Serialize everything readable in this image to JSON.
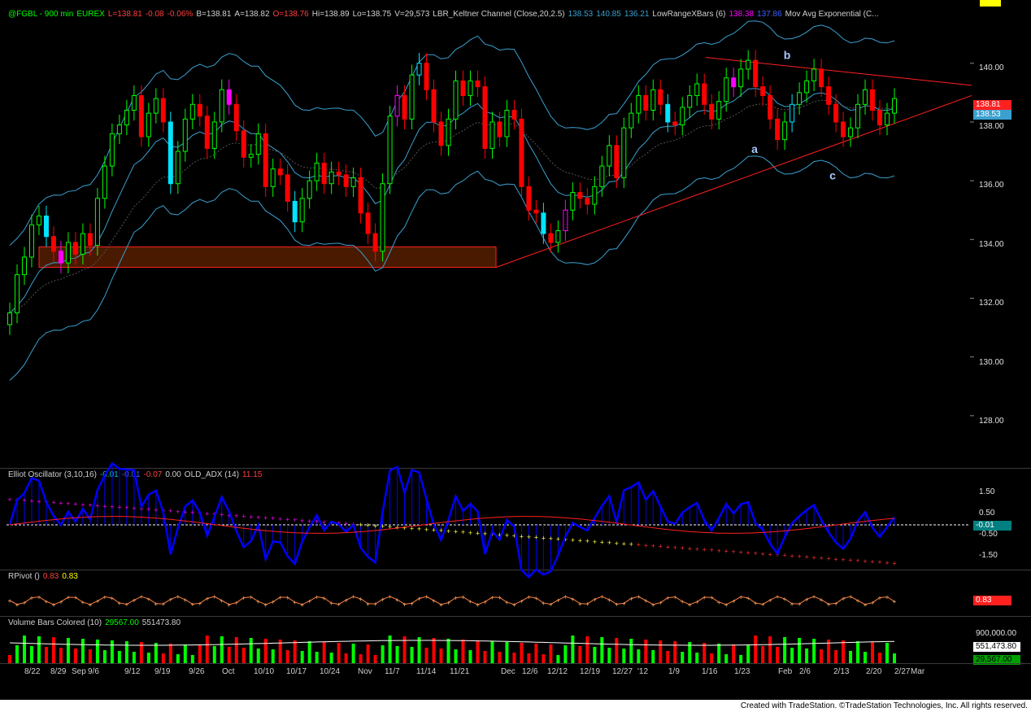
{
  "header": {
    "symbol": "@FGBL - 900 min",
    "exchange": "EUREX",
    "last": "L=138.81",
    "change": "-0.08",
    "change_pct": "-0.06%",
    "bid": "B=138.81",
    "ask": "A=138.82",
    "open": "O=138.76",
    "high": "Hi=138.89",
    "low": "Lo=138.75",
    "volume": "V=29,573",
    "keltner_name": "LBR_Keltner Channel (Close,20,2.5)",
    "keltner_values": [
      "138.53",
      "140.85",
      "136.21"
    ],
    "lrx_name": "LowRangeXBars (6)",
    "lrx_values": [
      "138.38",
      "137.86"
    ],
    "ma_name": "Mov Avg Exponential (C..."
  },
  "colors": {
    "up": "#00ff00",
    "down": "#ff0000",
    "cyan_bar": "#00e5ff",
    "magenta_bar": "#ff00ff",
    "pink_bar": "#ff80ff",
    "keltner": "#3aa0d0",
    "trendline": "#ff2020",
    "box_fill": "#4a1a00",
    "oscillator": "#0000ff",
    "adx": "#ff2020",
    "pivot": "#ff8040"
  },
  "osc_header": {
    "name": "Elliot Oscillator (3,10,16)",
    "v1": "-0.01",
    "v2": "-0.01",
    "v3": "-0.07",
    "v4": "0.00",
    "adx_name": "OLD_ADX (14)",
    "adx_value": "11.15"
  },
  "pivot_header": {
    "name": "RPivot ()",
    "v1": "0.83",
    "v2": "0.83"
  },
  "volume_header": {
    "name": "Volume Bars Colored (10)",
    "v1": "29567.00",
    "v2": "551473.80"
  },
  "price_tags": {
    "last": "138.81",
    "keltner_mid": "138.53"
  },
  "osc_tag": "-0.01",
  "pivot_tag": "0.83",
  "volume_tags": {
    "avg": "551,473.80",
    "vol": "29,567.00"
  },
  "wave_labels": [
    "a",
    "b",
    "c"
  ],
  "footer": "Created with TradeStation. ©TradeStation Technologies, Inc. All rights reserved.",
  "chart_data": {
    "type": "candlestick",
    "price_axis": {
      "ticks": [
        "140.00",
        "138.00",
        "136.00",
        "134.00",
        "132.00",
        "130.00",
        "128.00"
      ],
      "ylim": [
        126.5,
        141.6
      ]
    },
    "osc_axis": {
      "ticks": [
        "1.50",
        "0.50",
        "-0.50",
        "-1.50"
      ]
    },
    "volume_axis": {
      "ticks": [
        "900,000.00"
      ]
    },
    "dates": [
      "8/22",
      "8/29",
      "Sep",
      "9/6",
      "9/12",
      "9/19",
      "9/26",
      "Oct",
      "10/10",
      "10/17",
      "10/24",
      "Nov",
      "11/7",
      "11/14",
      "11/21",
      "Dec",
      "12/6",
      "12/12",
      "12/19",
      "12/27",
      "'12",
      "1/9",
      "1/16",
      "1/23",
      "Feb",
      "2/6",
      "2/13",
      "2/20",
      "2/27",
      "Mar"
    ],
    "closes": [
      131.5,
      132.8,
      133.4,
      134.5,
      134.8,
      134.1,
      133.6,
      133.2,
      133.9,
      133.5,
      134.2,
      133.8,
      135.4,
      136.5,
      137.6,
      137.9,
      138.4,
      138.9,
      137.5,
      138.3,
      138.8,
      138.0,
      135.9,
      137.0,
      138.1,
      138.6,
      138.2,
      137.1,
      138.0,
      139.1,
      138.6,
      137.7,
      136.8,
      136.9,
      137.6,
      135.8,
      136.4,
      136.2,
      135.3,
      134.6,
      135.4,
      136.0,
      136.6,
      135.9,
      136.3,
      136.2,
      135.8,
      136.1,
      134.9,
      134.2,
      133.6,
      135.9,
      138.2,
      138.9,
      138.1,
      139.6,
      140.0,
      139.1,
      138.0,
      137.2,
      138.1,
      139.4,
      138.9,
      139.4,
      139.2,
      137.1,
      138.0,
      137.5,
      138.4,
      138.1,
      135.8,
      135.0,
      134.9,
      134.2,
      133.9,
      134.3,
      135.0,
      135.6,
      135.4,
      135.2,
      135.8,
      136.5,
      137.2,
      136.1,
      137.8,
      138.3,
      138.9,
      138.4,
      139.1,
      138.6,
      138.0,
      137.9,
      138.5,
      138.9,
      139.3,
      138.6,
      138.1,
      138.7,
      139.5,
      139.2,
      139.8,
      140.1,
      139.2,
      138.9,
      138.1,
      137.4,
      138.0,
      138.6,
      139.0,
      139.4,
      139.8,
      139.2,
      138.6,
      138.0,
      137.5,
      137.8,
      138.6,
      139.1,
      138.4,
      137.9,
      138.3,
      138.8
    ]
  }
}
